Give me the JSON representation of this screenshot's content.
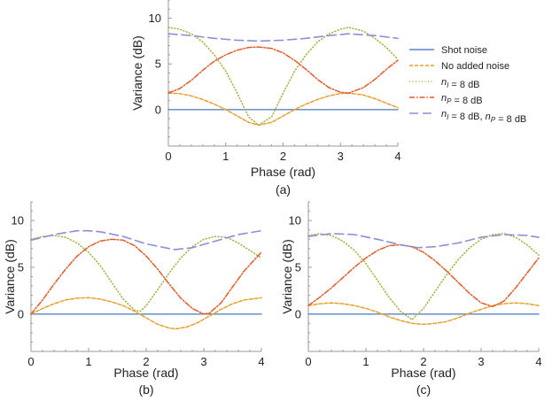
{
  "chart_data": [
    {
      "panel": "a",
      "type": "line",
      "caption": "(a)",
      "xlabel": "Phase (rad)",
      "ylabel": "Variance (dB)",
      "xlim": [
        0,
        4
      ],
      "ylim": [
        -4,
        12
      ],
      "xticks": [
        "0",
        "1",
        "2",
        "3",
        "4"
      ],
      "yticks": [
        "0",
        "5",
        "10"
      ],
      "series": [
        {
          "name": "Shot noise",
          "x": [
            0,
            4
          ],
          "y": [
            0,
            0
          ]
        },
        {
          "name": "No added noise",
          "x": [
            0,
            0.2,
            0.4,
            0.6,
            0.8,
            1.0,
            1.2,
            1.4,
            1.57,
            1.8,
            2.0,
            2.2,
            2.4,
            2.6,
            2.8,
            3.0,
            3.14,
            3.4,
            3.6,
            3.8,
            4.0
          ],
          "y": [
            1.8,
            1.75,
            1.5,
            1.1,
            0.6,
            0.0,
            -0.7,
            -1.4,
            -1.7,
            -1.4,
            -0.7,
            0.0,
            0.6,
            1.1,
            1.5,
            1.75,
            1.8,
            1.6,
            1.2,
            0.7,
            0.2
          ]
        },
        {
          "name": "n_I = 8 dB",
          "x": [
            0,
            0.2,
            0.4,
            0.6,
            0.8,
            1.0,
            1.2,
            1.4,
            1.57,
            1.8,
            2.0,
            2.2,
            2.4,
            2.6,
            2.8,
            3.0,
            3.14,
            3.4,
            3.6,
            3.8,
            4.0
          ],
          "y": [
            9.0,
            8.8,
            8.3,
            7.4,
            6.0,
            4.2,
            1.8,
            -0.8,
            -1.7,
            -0.8,
            1.8,
            4.2,
            6.0,
            7.4,
            8.3,
            8.8,
            9.0,
            8.6,
            7.8,
            6.8,
            5.5
          ]
        },
        {
          "name": "n_P = 8 dB",
          "x": [
            0,
            0.2,
            0.4,
            0.6,
            0.8,
            1.0,
            1.2,
            1.4,
            1.57,
            1.8,
            2.0,
            2.2,
            2.4,
            2.6,
            2.8,
            3.0,
            3.14,
            3.4,
            3.6,
            3.8,
            4.0
          ],
          "y": [
            1.8,
            2.3,
            3.2,
            4.3,
            5.3,
            6.0,
            6.5,
            6.8,
            6.85,
            6.7,
            6.2,
            5.4,
            4.4,
            3.3,
            2.4,
            1.9,
            1.8,
            2.4,
            3.3,
            4.4,
            5.4
          ]
        },
        {
          "name": "n_I = 8 dB, n_P = 8 dB",
          "x": [
            0,
            0.4,
            0.8,
            1.2,
            1.57,
            2.0,
            2.4,
            2.8,
            3.14,
            3.6,
            4.0
          ],
          "y": [
            8.3,
            8.1,
            7.8,
            7.6,
            7.5,
            7.6,
            7.8,
            8.1,
            8.3,
            8.1,
            7.8
          ]
        }
      ]
    },
    {
      "panel": "b",
      "type": "line",
      "caption": "(b)",
      "xlabel": "Phase (rad)",
      "ylabel": "Variance (dB)",
      "xlim": [
        0,
        4
      ],
      "ylim": [
        -4,
        12
      ],
      "xticks": [
        "0",
        "1",
        "2",
        "3",
        "4"
      ],
      "yticks": [
        "0",
        "5",
        "10"
      ],
      "series": [
        {
          "name": "Shot noise",
          "x": [
            0,
            4
          ],
          "y": [
            0,
            0
          ]
        },
        {
          "name": "No added noise",
          "x": [
            0,
            0.2,
            0.4,
            0.6,
            0.8,
            1.0,
            1.2,
            1.4,
            1.6,
            1.8,
            2.0,
            2.2,
            2.4,
            2.5,
            2.7,
            2.9,
            3.1,
            3.3,
            3.5,
            3.7,
            4.0
          ],
          "y": [
            0.0,
            0.6,
            1.1,
            1.5,
            1.7,
            1.75,
            1.6,
            1.3,
            0.9,
            0.3,
            -0.4,
            -1.1,
            -1.5,
            -1.6,
            -1.4,
            -0.9,
            -0.2,
            0.5,
            1.1,
            1.5,
            1.75
          ]
        },
        {
          "name": "n_I = 8 dB",
          "x": [
            0,
            0.2,
            0.4,
            0.6,
            0.8,
            1.0,
            1.2,
            1.4,
            1.6,
            1.8,
            1.9,
            2.0,
            2.2,
            2.4,
            2.6,
            2.8,
            3.0,
            3.2,
            3.4,
            3.6,
            3.8,
            4.0
          ],
          "y": [
            8.0,
            8.3,
            8.4,
            8.2,
            7.6,
            6.6,
            5.2,
            3.4,
            1.6,
            0.4,
            0.3,
            0.9,
            2.6,
            4.4,
            6.0,
            7.2,
            8.0,
            8.3,
            8.2,
            7.6,
            6.8,
            6.0
          ]
        },
        {
          "name": "n_P = 8 dB",
          "x": [
            0,
            0.2,
            0.4,
            0.6,
            0.8,
            1.0,
            1.2,
            1.4,
            1.6,
            1.8,
            2.0,
            2.2,
            2.4,
            2.6,
            2.8,
            3.0,
            3.1,
            3.3,
            3.5,
            3.7,
            4.0
          ],
          "y": [
            0.0,
            1.5,
            3.2,
            4.8,
            6.2,
            7.2,
            7.8,
            8.0,
            7.9,
            7.3,
            6.2,
            4.8,
            3.2,
            1.7,
            0.6,
            0.0,
            0.1,
            1.2,
            2.9,
            4.6,
            6.6
          ]
        },
        {
          "name": "n_I = 8 dB, n_P = 8 dB",
          "x": [
            0,
            0.4,
            0.8,
            1.0,
            1.2,
            1.6,
            2.0,
            2.4,
            2.5,
            2.8,
            3.2,
            3.6,
            4.0
          ],
          "y": [
            7.9,
            8.5,
            8.9,
            8.9,
            8.8,
            8.3,
            7.5,
            7.0,
            6.9,
            7.1,
            7.8,
            8.5,
            8.9
          ]
        }
      ]
    },
    {
      "panel": "c",
      "type": "line",
      "caption": "(c)",
      "xlabel": "Phase (rad)",
      "ylabel": "Variance (dB)",
      "xlim": [
        0,
        4
      ],
      "ylim": [
        -4,
        12
      ],
      "xticks": [
        "0",
        "1",
        "2",
        "3",
        "4"
      ],
      "yticks": [
        "0",
        "5",
        "10"
      ],
      "series": [
        {
          "name": "Shot noise",
          "x": [
            0,
            4
          ],
          "y": [
            0,
            0
          ]
        },
        {
          "name": "No added noise",
          "x": [
            0,
            0.2,
            0.4,
            0.6,
            0.8,
            1.0,
            1.2,
            1.4,
            1.6,
            1.8,
            2.0,
            2.2,
            2.4,
            2.6,
            2.8,
            3.0,
            3.2,
            3.4,
            3.6,
            3.8,
            4.0
          ],
          "y": [
            0.9,
            1.1,
            1.2,
            1.1,
            0.9,
            0.6,
            0.2,
            -0.3,
            -0.7,
            -1.0,
            -1.1,
            -1.0,
            -0.8,
            -0.4,
            0.1,
            0.5,
            0.9,
            1.1,
            1.2,
            1.1,
            0.9
          ]
        },
        {
          "name": "n_I = 8 dB",
          "x": [
            0,
            0.2,
            0.4,
            0.6,
            0.8,
            1.0,
            1.2,
            1.4,
            1.6,
            1.8,
            2.0,
            2.2,
            2.4,
            2.6,
            2.8,
            3.0,
            3.2,
            3.4,
            3.6,
            3.8,
            4.0
          ],
          "y": [
            8.4,
            8.6,
            8.4,
            7.8,
            6.8,
            5.4,
            3.6,
            1.8,
            0.3,
            -0.6,
            0.6,
            2.4,
            4.2,
            5.8,
            7.1,
            8.0,
            8.5,
            8.6,
            8.2,
            7.4,
            6.3
          ]
        },
        {
          "name": "n_P = 8 dB",
          "x": [
            0,
            0.2,
            0.4,
            0.6,
            0.8,
            1.0,
            1.2,
            1.4,
            1.6,
            1.8,
            2.0,
            2.2,
            2.4,
            2.6,
            2.8,
            3.0,
            3.2,
            3.4,
            3.6,
            3.8,
            4.0
          ],
          "y": [
            0.9,
            1.8,
            2.8,
            3.9,
            5.0,
            6.0,
            6.8,
            7.3,
            7.4,
            7.2,
            6.6,
            5.7,
            4.6,
            3.4,
            2.2,
            1.2,
            0.8,
            1.4,
            2.8,
            4.4,
            6.0
          ]
        },
        {
          "name": "n_I = 8 dB, n_P = 8 dB",
          "x": [
            0,
            0.4,
            0.8,
            1.2,
            1.6,
            1.9,
            2.2,
            2.6,
            3.0,
            3.4,
            3.8,
            4.0
          ],
          "y": [
            8.3,
            8.6,
            8.5,
            8.0,
            7.4,
            7.1,
            7.2,
            7.6,
            8.2,
            8.5,
            8.4,
            8.2
          ]
        }
      ]
    }
  ],
  "legend": {
    "items": [
      {
        "label": "Shot noise"
      },
      {
        "label": "No added noise"
      },
      {
        "label_parts": [
          {
            "t": "n",
            "style": "it"
          },
          {
            "t": "I",
            "style": "sub"
          },
          {
            "t": " = 8 dB",
            "style": "n"
          }
        ]
      },
      {
        "label_parts": [
          {
            "t": "n",
            "style": "it"
          },
          {
            "t": "P",
            "style": "sub"
          },
          {
            "t": " = 8 dB",
            "style": "n"
          }
        ]
      },
      {
        "label_parts": [
          {
            "t": "n",
            "style": "it"
          },
          {
            "t": "I",
            "style": "sub"
          },
          {
            "t": " = 8 dB, ",
            "style": "n"
          },
          {
            "t": "n",
            "style": "it"
          },
          {
            "t": "P",
            "style": "sub"
          },
          {
            "t": " = 8 dB",
            "style": "n"
          }
        ]
      }
    ]
  },
  "colors": {
    "shot": "#5b86c6",
    "noadd": "#e8a02a",
    "nI": "#a6b040",
    "nP": "#e05a2a",
    "both": "#8c8ed6",
    "axis": "#999999"
  }
}
